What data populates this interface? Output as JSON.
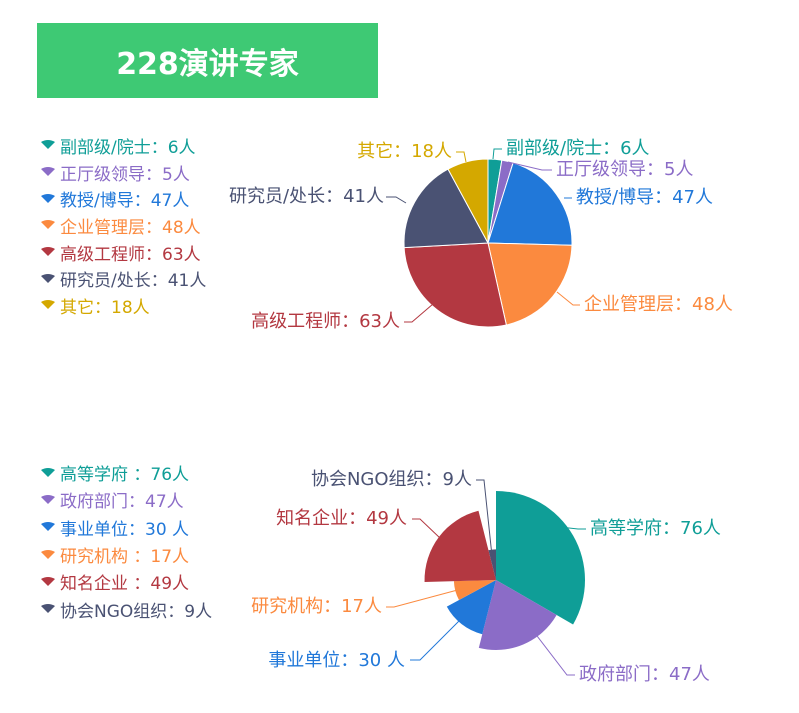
{
  "title": "228演讲专家",
  "colors": {
    "title_bg": "#3ec974",
    "title_text": "#ffffff"
  },
  "chart_data": [
    {
      "type": "pie",
      "categories": [
        "副部级/院士",
        "正厅级领导",
        "教授/博导",
        "企业管理层",
        "高级工程师",
        "研究员/处长",
        "其它"
      ],
      "values": [
        6,
        5,
        47,
        48,
        63,
        41,
        18
      ],
      "unit": "人",
      "legend_labels": [
        "副部级/院士：6人",
        "正厅级领导：5人",
        "教授/博导：47人",
        "企业管理层：48人",
        "高级工程师：63人",
        "研究员/处长：41人",
        "其它：18人"
      ],
      "data_labels": [
        "副部级/院士：6人",
        "正厅级领导：5人",
        "教授/博导：47人",
        "企业管理层：48人",
        "高级工程师：63人",
        "研究员/处长：41人",
        "其它：18人"
      ],
      "colors": [
        "#0f9e97",
        "#8b6cc7",
        "#2178d9",
        "#fb8a3f",
        "#b33841",
        "#4a5273",
        "#d4a800"
      ],
      "legend_position": "left"
    },
    {
      "type": "pie",
      "variant": "rose",
      "categories": [
        "高等学府",
        "政府部门",
        "事业单位",
        "研究机构",
        "知名企业",
        "协会NGO组织"
      ],
      "values": [
        76,
        47,
        30,
        17,
        49,
        9
      ],
      "unit": "人",
      "legend_labels": [
        "高等学府 ：76人",
        "政府部门：47人",
        "事业单位：30 人",
        "研究机构 ：17人",
        "知名企业 ：49人",
        "协会NGO组织：9人"
      ],
      "data_labels": [
        "高等学府：76人",
        "政府部门：47人",
        "事业单位：30 人",
        "研究机构：17人",
        "知名企业：49人",
        "协会NGO组织：9人"
      ],
      "colors": [
        "#0f9e97",
        "#8b6cc7",
        "#2178d9",
        "#fb8a3f",
        "#b33841",
        "#4a5273"
      ],
      "legend_position": "left"
    }
  ]
}
